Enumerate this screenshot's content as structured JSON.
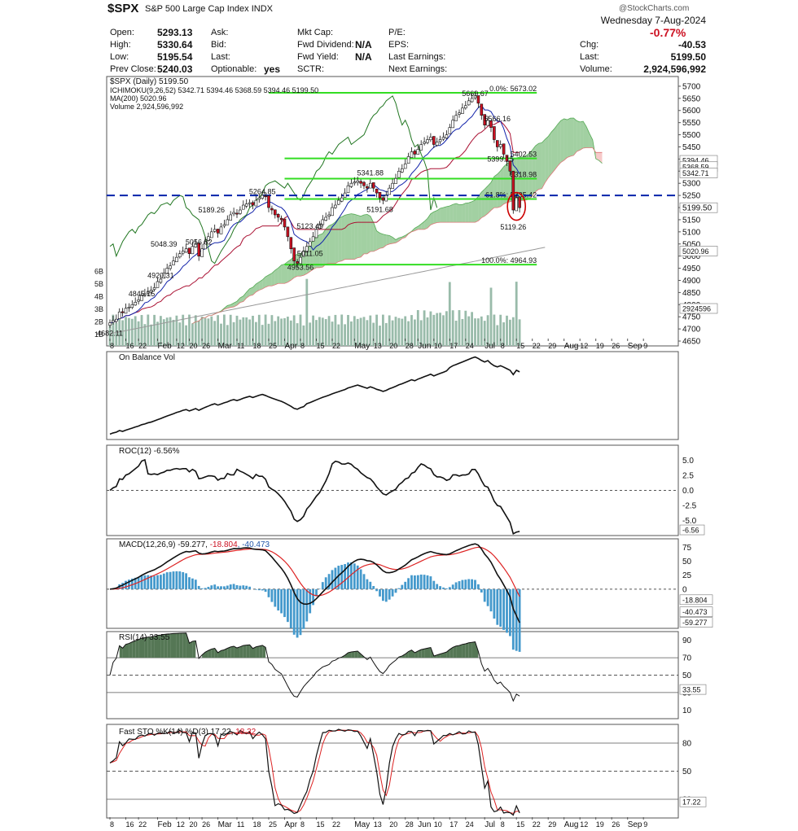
{
  "header": {
    "symbol": "$SPX",
    "name": "S&P 500 Large Cap Index",
    "exchange": "INDX",
    "watermark": "@StockCharts.com",
    "date": "Wednesday 7-Aug-2024",
    "change_pct": "-0.77%",
    "fields": [
      {
        "label": "Open:",
        "value": "5293.13"
      },
      {
        "label": "High:",
        "value": "5330.64"
      },
      {
        "label": "Low:",
        "value": "5195.54"
      },
      {
        "label": "Prev Close:",
        "value": "5240.03"
      }
    ],
    "mid_fields": [
      {
        "label": "Ask:",
        "value": ""
      },
      {
        "label": "Bid:",
        "value": ""
      },
      {
        "label": "Last:",
        "value": ""
      },
      {
        "label": "Optionable:",
        "value": "yes"
      }
    ],
    "cap_fields": [
      {
        "label": "Mkt Cap:",
        "value": ""
      },
      {
        "label": "Fwd Dividend:",
        "value": "N/A"
      },
      {
        "label": "Fwd Yield:",
        "value": "N/A"
      },
      {
        "label": "SCTR:",
        "value": ""
      }
    ],
    "pe_fields": [
      {
        "label": "P/E:",
        "value": ""
      },
      {
        "label": "EPS:",
        "value": ""
      },
      {
        "label": "Last Earnings:",
        "value": ""
      },
      {
        "label": "Next Earnings:",
        "value": ""
      }
    ],
    "right_fields": [
      {
        "label": "Chg:",
        "value": "-40.53"
      },
      {
        "label": "Last:",
        "value": "5199.50"
      },
      {
        "label": "Volume:",
        "value": "2,924,596,992"
      }
    ]
  },
  "colors": {
    "up": "#ffffff",
    "down": "#cc1122",
    "green_line": "#33dd22",
    "blue_dash": "#0022aa",
    "kijun": "#aa1133",
    "tenkan": "#1122aa",
    "chikou": "#227722",
    "cloud_bull": "#55aa55",
    "cloud_bear": "#ee8888",
    "ma200": "#999999",
    "volume": "#99bbaa",
    "macd_hist": "#4499cc",
    "signal_red": "#dd2222",
    "ellipse": "#cc0000"
  },
  "chart_data": [
    {
      "type": "candlestick",
      "legend": [
        "$SPX (Daily) 5199.50",
        "ICHIMOKU(9,26,52) 5342.71 5394.46 5368.59 5394.46 5199.50",
        "MA(200) 5020.96",
        "Volume 2,924,596,992"
      ],
      "ichimoku_values": [
        "5342.71",
        "5394.46",
        "5368.59",
        "5394.46",
        "5199.50"
      ],
      "y_ticks": [
        4650,
        4700,
        4750,
        4800,
        4850,
        4900,
        4950,
        5000,
        5050,
        5100,
        5150,
        5200,
        5250,
        5300,
        5350,
        5400,
        5450,
        5500,
        5550,
        5600,
        5650,
        5700
      ],
      "ylim": [
        4630,
        5740
      ],
      "volume_ticks": [
        "1B",
        "2B",
        "3B",
        "4B",
        "5B",
        "6B"
      ],
      "right_value_tags": [
        "5394.46",
        "5368.59",
        "5342.71",
        "5199.50",
        "5020.96",
        "2924596"
      ],
      "fib": [
        {
          "price": 5673.02,
          "text": "0.0%: 5673.02"
        },
        {
          "price": 5402.53,
          "text": "5402.53"
        },
        {
          "price": 5318.98,
          "text": "5318.98"
        },
        {
          "price": 5235.42,
          "text": "61.8%: 5235.42"
        },
        {
          "price": 4964.93,
          "text": "100.0%: 4964.93"
        }
      ],
      "blue_line": 5250,
      "annotations": [
        {
          "i": 0,
          "price": 4682.11,
          "text": "4682.11"
        },
        {
          "i": 10,
          "price": 4845.15,
          "text": "4845.15"
        },
        {
          "i": 17,
          "price": 5048.39,
          "text": "5048.39"
        },
        {
          "i": 16,
          "price": 4920.31,
          "text": "4920.31"
        },
        {
          "i": 28,
          "price": 5056.82,
          "text": "5056.82"
        },
        {
          "i": 32,
          "price": 5189.26,
          "text": "5189.26"
        },
        {
          "i": 48,
          "price": 5264.85,
          "text": "5264.85"
        },
        {
          "i": 63,
          "price": 5123.49,
          "text": "5123.49"
        },
        {
          "i": 63,
          "price": 5011.05,
          "text": "5011.05"
        },
        {
          "i": 60,
          "price": 4953.56,
          "text": "4953.56"
        },
        {
          "i": 82,
          "price": 5341.88,
          "text": "5341.88"
        },
        {
          "i": 85,
          "price": 5191.68,
          "text": "5191.68"
        },
        {
          "i": 115,
          "price": 5669.67,
          "text": "5669.67"
        },
        {
          "i": 122,
          "price": 5566.16,
          "text": "5566.16"
        },
        {
          "i": 123,
          "price": 5399.15,
          "text": "5399.15"
        },
        {
          "i": 127,
          "price": 5119.26,
          "text": "5119.26"
        }
      ],
      "closes": [
        4725,
        4735,
        4740,
        4770,
        4768,
        4785,
        4790,
        4800,
        4810,
        4820,
        4840,
        4845,
        4855,
        4860,
        4870,
        4895,
        4905,
        4930,
        4950,
        4960,
        4980,
        4995,
        5010,
        5020,
        5030,
        5010,
        5040,
        5050,
        5000,
        5030,
        5060,
        5080,
        5100,
        5110,
        5095,
        5120,
        5130,
        5150,
        5170,
        5180,
        5175,
        5190,
        5210,
        5215,
        5220,
        5210,
        5230,
        5240,
        5250,
        5245,
        5200,
        5190,
        5170,
        5160,
        5150,
        5120,
        5080,
        5030,
        4980,
        4970,
        4995,
        5020,
        5040,
        5060,
        5080,
        5110,
        5130,
        5150,
        5160,
        5170,
        5200,
        5210,
        5230,
        5240,
        5260,
        5290,
        5300,
        5305,
        5310,
        5300,
        5290,
        5280,
        5300,
        5280,
        5260,
        5240,
        5230,
        5250,
        5280,
        5300,
        5320,
        5350,
        5360,
        5380,
        5410,
        5430,
        5420,
        5440,
        5460,
        5470,
        5480,
        5490,
        5460,
        5470,
        5480,
        5490,
        5500,
        5530,
        5560,
        5580,
        5590,
        5610,
        5620,
        5640,
        5650,
        5660,
        5630,
        5580,
        5540,
        5560,
        5530,
        5480,
        5450,
        5460,
        5420,
        5390,
        5350,
        5190,
        5240,
        5199.5
      ],
      "x_labels": [
        {
          "i": 0,
          "t": "8"
        },
        {
          "i": 5,
          "t": "16"
        },
        {
          "i": 9,
          "t": "22"
        },
        {
          "i": 15,
          "t": "Feb"
        },
        {
          "i": 21,
          "t": "12"
        },
        {
          "i": 25,
          "t": "20"
        },
        {
          "i": 29,
          "t": "26"
        },
        {
          "i": 34,
          "t": "Mar"
        },
        {
          "i": 40,
          "t": "11"
        },
        {
          "i": 45,
          "t": "18"
        },
        {
          "i": 50,
          "t": "25"
        },
        {
          "i": 55,
          "t": "Apr"
        },
        {
          "i": 60,
          "t": "8"
        },
        {
          "i": 65,
          "t": "15"
        },
        {
          "i": 70,
          "t": "22"
        },
        {
          "i": 77,
          "t": "May"
        },
        {
          "i": 83,
          "t": "13"
        },
        {
          "i": 88,
          "t": "20"
        },
        {
          "i": 93,
          "t": "28"
        },
        {
          "i": 97,
          "t": "Jun"
        },
        {
          "i": 102,
          "t": "10"
        },
        {
          "i": 107,
          "t": "17"
        },
        {
          "i": 112,
          "t": "24"
        },
        {
          "i": 118,
          "t": "Jul"
        },
        {
          "i": 123,
          "t": "8"
        },
        {
          "i": 128,
          "t": "15"
        },
        {
          "i": 133,
          "t": "22"
        },
        {
          "i": 138,
          "t": "29"
        },
        {
          "i": 143,
          "t": "Aug"
        },
        {
          "i": 148,
          "t": "12"
        },
        {
          "i": 153,
          "t": "19"
        },
        {
          "i": 158,
          "t": "26"
        },
        {
          "i": 163,
          "t": "Sep"
        },
        {
          "i": 168,
          "t": "9"
        }
      ]
    },
    {
      "type": "line",
      "name": "On Balance Vol",
      "legend": "On Balance Vol"
    },
    {
      "type": "line",
      "legend": "ROC(12) -6.56%",
      "y_ticks": [
        "5.0",
        "2.5",
        "0.0",
        "-2.5",
        "-5.0"
      ],
      "value_tag": "-6.56",
      "ylim": [
        -7.5,
        7.5
      ]
    },
    {
      "type": "line",
      "legend_parts": [
        "MACD(12,26,9) -59.277, ",
        "-18.804",
        ", -40.473"
      ],
      "y_ticks": [
        "75",
        "50",
        "25",
        "0"
      ],
      "value_tags": [
        "-18.804",
        "-40.473",
        "-59.277"
      ],
      "ylim": [
        -70,
        90
      ]
    },
    {
      "type": "line",
      "legend": "RSI(14) 33.55",
      "y_ticks": [
        "90",
        "70",
        "50",
        "30",
        "10"
      ],
      "value_tag": "33.55",
      "ylim": [
        0,
        100
      ]
    },
    {
      "type": "line",
      "legend_parts": [
        "Fast STO %K(14) %D(3) 17.22, ",
        "18.32"
      ],
      "y_ticks": [
        "80",
        "50",
        "20"
      ],
      "value_tag": "17.22",
      "ylim": [
        0,
        100
      ]
    }
  ]
}
